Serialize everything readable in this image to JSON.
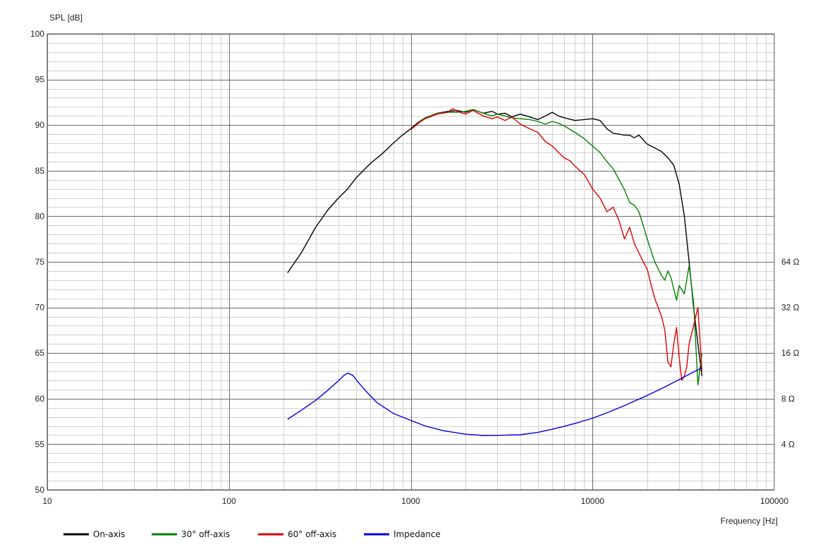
{
  "chart_data": {
    "type": "line",
    "ylabel": "SPL [dB]",
    "xlabel": "Frequency [Hz]",
    "x_scale": "log",
    "xlim": [
      10,
      100000
    ],
    "ylim": [
      50,
      100
    ],
    "grid": true,
    "legend_position": "bottom-left",
    "x_ticks": [
      "10",
      "100",
      "1000",
      "10000",
      "100000"
    ],
    "y_ticks": [
      "50",
      "55",
      "60",
      "65",
      "70",
      "75",
      "80",
      "85",
      "90",
      "95",
      "100"
    ],
    "y2_ticks": [
      {
        "label": "4 Ω",
        "value": 4
      },
      {
        "label": "8 Ω",
        "value": 8
      },
      {
        "label": "16 Ω",
        "value": 16
      },
      {
        "label": "32 Ω",
        "value": 32
      },
      {
        "label": "64 Ω",
        "value": 64
      }
    ],
    "y2_axis": {
      "scale": "log",
      "ref_ohm": 4,
      "ref_db": 55,
      "db_per_octave": 5
    },
    "series": [
      {
        "name": "On-axis",
        "axis": "left",
        "color": "#000000",
        "x": [
          210,
          250,
          300,
          350,
          400,
          450,
          500,
          600,
          700,
          800,
          900,
          1000,
          1100,
          1200,
          1400,
          1600,
          1800,
          2000,
          2200,
          2500,
          2800,
          3000,
          3300,
          3600,
          4000,
          4500,
          5000,
          5500,
          6000,
          6500,
          7000,
          8000,
          9000,
          10000,
          11000,
          12000,
          13000,
          14000,
          15000,
          16000,
          17000,
          18000,
          19000,
          20000,
          22000,
          24000,
          26000,
          28000,
          30000,
          32000,
          34000,
          36000,
          38000,
          40000
        ],
        "y": [
          73.8,
          76.0,
          78.8,
          80.7,
          82.0,
          83.0,
          84.2,
          85.8,
          86.9,
          88.0,
          88.9,
          89.6,
          90.3,
          90.8,
          91.3,
          91.5,
          91.6,
          91.4,
          91.7,
          91.3,
          91.5,
          91.2,
          91.3,
          90.9,
          91.2,
          90.9,
          90.6,
          91.0,
          91.4,
          91.0,
          90.8,
          90.5,
          90.6,
          90.7,
          90.5,
          89.6,
          89.1,
          89.0,
          88.9,
          88.9,
          88.6,
          88.9,
          88.4,
          87.9,
          87.5,
          87.1,
          86.4,
          85.6,
          83.5,
          80.0,
          75.0,
          70.0,
          66.0,
          62.5
        ]
      },
      {
        "name": "30° off-axis",
        "axis": "left",
        "color": "#008000",
        "x": [
          1000,
          1100,
          1200,
          1400,
          1600,
          1800,
          2000,
          2200,
          2500,
          2800,
          3000,
          3300,
          3600,
          4000,
          4500,
          5000,
          5500,
          6000,
          6500,
          7000,
          8000,
          9000,
          10000,
          11000,
          12000,
          13000,
          14000,
          15000,
          16000,
          17000,
          18000,
          19000,
          20000,
          22000,
          24000,
          25000,
          26000,
          27000,
          28000,
          29000,
          30000,
          32000,
          34000,
          36000,
          38000,
          40000
        ],
        "y": [
          89.5,
          90.2,
          90.8,
          91.3,
          91.4,
          91.4,
          91.5,
          91.7,
          91.3,
          91.0,
          91.2,
          91.0,
          90.8,
          90.7,
          90.6,
          90.4,
          90.1,
          90.4,
          90.2,
          89.9,
          89.2,
          88.5,
          87.7,
          87.0,
          86.0,
          85.2,
          84.0,
          82.9,
          81.5,
          81.2,
          80.5,
          79.0,
          77.5,
          75.0,
          73.5,
          73.0,
          74.0,
          73.3,
          72.0,
          70.8,
          72.4,
          71.5,
          74.6,
          70.5,
          61.5,
          65.0
        ]
      },
      {
        "name": "60° off-axis",
        "axis": "left",
        "color": "#e00000",
        "x": [
          1000,
          1100,
          1200,
          1400,
          1600,
          1700,
          1800,
          2000,
          2200,
          2500,
          2800,
          3000,
          3300,
          3600,
          4000,
          4500,
          5000,
          5500,
          6000,
          6500,
          7000,
          7500,
          8000,
          8500,
          9000,
          10000,
          11000,
          12000,
          13000,
          14000,
          15000,
          16000,
          17000,
          18000,
          19000,
          20000,
          21000,
          22000,
          24000,
          25000,
          26000,
          27000,
          28000,
          29000,
          30000,
          31000,
          32000,
          33000,
          34000,
          36000,
          38000,
          40000
        ],
        "y": [
          89.5,
          90.2,
          90.7,
          91.2,
          91.4,
          91.8,
          91.5,
          91.2,
          91.6,
          91.0,
          90.7,
          90.9,
          90.5,
          90.9,
          90.1,
          89.6,
          89.2,
          88.2,
          87.7,
          87.0,
          86.4,
          86.1,
          85.5,
          85.0,
          84.6,
          83.0,
          82.0,
          80.5,
          81.0,
          79.5,
          77.5,
          78.8,
          77.0,
          76.0,
          75.0,
          74.2,
          72.5,
          71.0,
          69.0,
          67.5,
          64.0,
          63.5,
          66.0,
          67.8,
          64.5,
          62.0,
          62.5,
          63.5,
          66.0,
          68.0,
          70.0,
          63.0
        ]
      },
      {
        "name": "Impedance",
        "axis": "right",
        "color": "#0000e0",
        "x": [
          210,
          250,
          300,
          350,
          400,
          430,
          450,
          480,
          520,
          570,
          650,
          800,
          1000,
          1200,
          1500,
          2000,
          2500,
          3000,
          4000,
          5000,
          6000,
          7000,
          8000,
          10000,
          12000,
          15000,
          20000,
          25000,
          30000,
          35000,
          40000
        ],
        "y": [
          5.85,
          6.7,
          7.8,
          9.1,
          10.5,
          11.4,
          11.8,
          11.4,
          10.1,
          8.9,
          7.55,
          6.4,
          5.75,
          5.28,
          4.92,
          4.66,
          4.57,
          4.58,
          4.62,
          4.79,
          5.02,
          5.26,
          5.49,
          5.94,
          6.45,
          7.2,
          8.4,
          9.55,
          10.7,
          11.8,
          12.8
        ]
      }
    ]
  }
}
